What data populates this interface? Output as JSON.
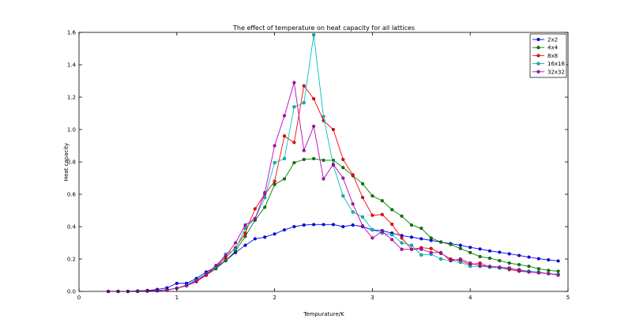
{
  "chart_data": {
    "type": "line",
    "title": "The effect of temperature on heat capacity for all lattices",
    "xlabel": "Tempurature/K",
    "ylabel": "Heat capacity",
    "xlim": [
      0,
      5
    ],
    "ylim": [
      0,
      1.6
    ],
    "xticks": [
      "0",
      "1",
      "2",
      "3",
      "4",
      "5"
    ],
    "yticks": [
      "0.0",
      "0.2",
      "0.4",
      "0.6",
      "0.8",
      "1.0",
      "1.2",
      "1.4",
      "1.6"
    ],
    "legend_position": "top-right",
    "grid": false,
    "x": [
      0.3,
      0.4,
      0.5,
      0.6,
      0.7,
      0.8,
      0.9,
      1.0,
      1.1,
      1.2,
      1.3,
      1.4,
      1.5,
      1.6,
      1.7,
      1.8,
      1.9,
      2.0,
      2.1,
      2.2,
      2.3,
      2.4,
      2.5,
      2.6,
      2.7,
      2.8,
      2.9,
      3.0,
      3.1,
      3.2,
      3.3,
      3.4,
      3.5,
      3.6,
      3.7,
      3.8,
      3.9,
      4.0,
      4.1,
      4.2,
      4.3,
      4.4,
      4.5,
      4.6,
      4.7,
      4.8,
      4.9
    ],
    "series": [
      {
        "name": "2x2",
        "color": "#0000ff",
        "values": [
          0.0,
          0.0,
          0.0,
          0.003,
          0.006,
          0.012,
          0.022,
          0.05,
          0.05,
          0.08,
          0.12,
          0.15,
          0.19,
          0.24,
          0.285,
          0.325,
          0.335,
          0.355,
          0.38,
          0.4,
          0.41,
          0.413,
          0.413,
          0.413,
          0.4,
          0.41,
          0.4,
          0.38,
          0.375,
          0.36,
          0.345,
          0.335,
          0.325,
          0.315,
          0.305,
          0.295,
          0.285,
          0.272,
          0.262,
          0.25,
          0.242,
          0.232,
          0.222,
          0.212,
          0.202,
          0.195,
          0.188
        ]
      },
      {
        "name": "4x4",
        "color": "#008000",
        "values": [
          0.0,
          0.0,
          0.0,
          0.001,
          0.003,
          0.006,
          0.01,
          0.02,
          0.04,
          0.07,
          0.1,
          0.14,
          0.19,
          0.25,
          0.34,
          0.44,
          0.52,
          0.66,
          0.695,
          0.795,
          0.815,
          0.82,
          0.81,
          0.81,
          0.765,
          0.715,
          0.665,
          0.59,
          0.56,
          0.505,
          0.465,
          0.41,
          0.39,
          0.33,
          0.305,
          0.29,
          0.265,
          0.24,
          0.215,
          0.205,
          0.19,
          0.175,
          0.165,
          0.155,
          0.14,
          0.13,
          0.125
        ]
      },
      {
        "name": "8x8",
        "color": "#ff0000",
        "values": [
          0.0,
          0.0,
          0.0,
          0.001,
          0.002,
          0.005,
          0.009,
          0.02,
          0.035,
          0.06,
          0.1,
          0.15,
          0.21,
          0.27,
          0.36,
          0.51,
          0.6,
          0.68,
          0.96,
          0.92,
          1.27,
          1.19,
          1.055,
          1.0,
          0.815,
          0.72,
          0.58,
          0.47,
          0.475,
          0.415,
          0.33,
          0.26,
          0.27,
          0.265,
          0.235,
          0.2,
          0.19,
          0.165,
          0.175,
          0.15,
          0.145,
          0.135,
          0.125,
          0.12,
          0.115,
          0.11,
          0.105
        ]
      },
      {
        "name": "16x16",
        "color": "#00bfbf",
        "values": [
          0.0,
          0.0,
          0.0,
          0.001,
          0.002,
          0.004,
          0.008,
          0.02,
          0.04,
          0.07,
          0.11,
          0.15,
          0.23,
          0.26,
          0.39,
          0.45,
          0.58,
          0.795,
          0.82,
          1.14,
          1.165,
          1.585,
          1.08,
          0.78,
          0.59,
          0.49,
          0.46,
          0.38,
          0.36,
          0.35,
          0.3,
          0.285,
          0.225,
          0.23,
          0.2,
          0.19,
          0.18,
          0.155,
          0.155,
          0.15,
          0.145,
          0.14,
          0.135,
          0.125,
          0.12,
          0.11,
          0.105
        ]
      },
      {
        "name": "32x32",
        "color": "#bf00bf",
        "values": [
          0.0,
          0.0,
          0.0,
          0.001,
          0.002,
          0.004,
          0.008,
          0.02,
          0.035,
          0.065,
          0.105,
          0.16,
          0.22,
          0.3,
          0.41,
          0.45,
          0.61,
          0.9,
          1.085,
          1.29,
          0.87,
          1.02,
          0.695,
          0.785,
          0.7,
          0.54,
          0.405,
          0.33,
          0.37,
          0.32,
          0.26,
          0.26,
          0.26,
          0.24,
          0.24,
          0.19,
          0.2,
          0.175,
          0.16,
          0.155,
          0.15,
          0.145,
          0.13,
          0.12,
          0.115,
          0.11,
          0.1
        ]
      }
    ]
  }
}
